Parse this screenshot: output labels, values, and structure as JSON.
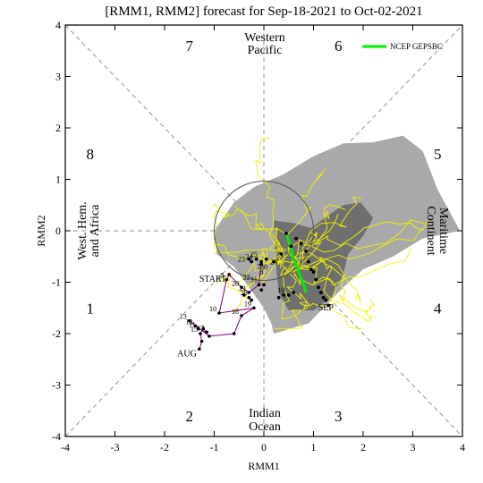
{
  "chart_data": {
    "type": "scatter",
    "title": "[RMM1, RMM2] forecast for Sep-18-2021 to Oct-02-2021",
    "xlabel": "RMM1",
    "ylabel": "RMM2",
    "xlim": [
      -4,
      4
    ],
    "ylim": [
      -4,
      4
    ],
    "xticks": [
      "-4",
      "-3",
      "-2",
      "-1",
      "0",
      "1",
      "2",
      "3",
      "4"
    ],
    "yticks": [
      "-4",
      "-3",
      "-2",
      "-1",
      "0",
      "1",
      "2",
      "3",
      "4"
    ],
    "grid": false,
    "legend": {
      "position": "top-right",
      "entries": [
        {
          "name": "NCEP GEPSBC",
          "color": "#00ee00"
        }
      ]
    },
    "phase_labels": [
      {
        "text": "1",
        "x": -3.5,
        "y": -1.5
      },
      {
        "text": "2",
        "x": -1.5,
        "y": -3.6
      },
      {
        "text": "3",
        "x": 1.5,
        "y": -3.6
      },
      {
        "text": "4",
        "x": 3.5,
        "y": -1.5
      },
      {
        "text": "5",
        "x": 3.5,
        "y": 1.5
      },
      {
        "text": "6",
        "x": 1.5,
        "y": 3.6
      },
      {
        "text": "7",
        "x": -1.5,
        "y": 3.6
      },
      {
        "text": "8",
        "x": -3.5,
        "y": 1.5
      }
    ],
    "region_labels": {
      "top": [
        "Western",
        "Pacific"
      ],
      "bottom": [
        "Indian",
        "Ocean"
      ],
      "left": [
        "West. Hem.",
        "and Africa"
      ],
      "right": [
        "Maritime",
        "Continent"
      ]
    },
    "unit_circle_radius": 1,
    "outer_spread_polygon": [
      [
        -1.0,
        0.0
      ],
      [
        -0.6,
        0.55
      ],
      [
        -0.2,
        0.85
      ],
      [
        0.4,
        1.1
      ],
      [
        1.0,
        1.45
      ],
      [
        1.6,
        1.7
      ],
      [
        2.2,
        1.72
      ],
      [
        2.8,
        1.85
      ],
      [
        3.2,
        1.55
      ],
      [
        3.5,
        0.8
      ],
      [
        3.95,
        0.0
      ],
      [
        3.2,
        -0.15
      ],
      [
        2.6,
        -0.5
      ],
      [
        2.0,
        -0.75
      ],
      [
        1.6,
        -1.1
      ],
      [
        1.2,
        -1.5
      ],
      [
        0.9,
        -1.8
      ],
      [
        0.2,
        -2.0
      ],
      [
        0.15,
        -1.8
      ],
      [
        0.0,
        -1.5
      ],
      [
        -0.3,
        -1.1
      ],
      [
        -0.6,
        -0.7
      ],
      [
        -0.95,
        -0.45
      ]
    ],
    "inner_spread_polygon": [
      [
        0.2,
        0.2
      ],
      [
        0.6,
        0.15
      ],
      [
        0.95,
        0.05
      ],
      [
        1.3,
        0.3
      ],
      [
        1.6,
        0.5
      ],
      [
        1.95,
        0.55
      ],
      [
        2.2,
        0.25
      ],
      [
        2.0,
        -0.1
      ],
      [
        1.7,
        -0.45
      ],
      [
        1.6,
        -0.85
      ],
      [
        1.35,
        -1.3
      ],
      [
        1.0,
        -1.55
      ],
      [
        0.5,
        -1.55
      ],
      [
        0.3,
        -1.2
      ],
      [
        0.25,
        -0.7
      ]
    ],
    "observed": {
      "name": "Observed",
      "color": "#800080",
      "points": [
        {
          "label": "AUG",
          "x": -1.3,
          "y": -2.3
        },
        {
          "label": "",
          "x": -1.25,
          "y": -2.15
        },
        {
          "label": "15",
          "x": -1.28,
          "y": -2.0
        },
        {
          "label": "",
          "x": -1.22,
          "y": -1.9
        },
        {
          "label": "17",
          "x": -1.15,
          "y": -1.97
        },
        {
          "label": "11",
          "x": -1.32,
          "y": -1.9
        },
        {
          "label": "12",
          "x": -1.38,
          "y": -1.85
        },
        {
          "label": "13",
          "x": -1.5,
          "y": -1.75
        },
        {
          "label": "",
          "x": -1.1,
          "y": -2.05
        },
        {
          "label": "",
          "x": -0.6,
          "y": -2.0
        },
        {
          "label": "18",
          "x": -0.45,
          "y": -1.65
        },
        {
          "label": "19",
          "x": -0.2,
          "y": -1.5
        },
        {
          "label": "10",
          "x": -0.9,
          "y": -1.6
        },
        {
          "label": "9",
          "x": -0.75,
          "y": -0.95
        },
        {
          "label": "START",
          "x": -0.7,
          "y": -0.85
        },
        {
          "label": "20",
          "x": -0.45,
          "y": -1.1
        },
        {
          "label": "21",
          "x": -0.3,
          "y": -1.2
        },
        {
          "label": "",
          "x": -0.1,
          "y": -1.05
        },
        {
          "label": "",
          "x": -0.05,
          "y": -0.6
        }
      ]
    },
    "ensemble_mean": {
      "name": "NCEP GEPSBC",
      "color": "#00ee00",
      "points": [
        [
          0.45,
          -0.05
        ],
        [
          0.55,
          -0.35
        ],
        [
          0.6,
          -0.55
        ],
        [
          0.7,
          -0.8
        ],
        [
          0.8,
          -1.05
        ],
        [
          0.85,
          -1.2
        ]
      ]
    },
    "black_points": [
      [
        -0.3,
        -0.55
      ],
      [
        -0.25,
        -0.6
      ],
      [
        -0.15,
        -0.55
      ],
      [
        -0.05,
        -0.65
      ],
      [
        0.05,
        -0.55
      ],
      [
        0.2,
        -0.6
      ],
      [
        0.35,
        -0.45
      ],
      [
        0.45,
        -0.05
      ],
      [
        0.55,
        -0.3
      ],
      [
        0.65,
        -0.15
      ],
      [
        0.75,
        -0.25
      ],
      [
        0.85,
        -0.4
      ],
      [
        0.9,
        -0.6
      ],
      [
        0.95,
        -0.75
      ],
      [
        1.0,
        -0.8
      ],
      [
        1.05,
        -0.95
      ],
      [
        1.1,
        -1.1
      ],
      [
        1.15,
        -1.2
      ],
      [
        1.2,
        -1.3
      ],
      [
        1.25,
        -1.35
      ],
      [
        1.3,
        -1.45
      ],
      [
        0.6,
        -1.2
      ],
      [
        0.5,
        -1.25
      ],
      [
        0.4,
        -1.25
      ],
      [
        0.3,
        -1.3
      ],
      [
        -0.3,
        -1.3
      ],
      [
        -0.4,
        -1.25
      ],
      [
        -0.25,
        -1.35
      ],
      [
        -0.05,
        -1.15
      ],
      [
        0.0,
        -1.05
      ]
    ],
    "point_labels": [
      {
        "text": "23",
        "x": -0.45,
        "y": -0.6
      },
      {
        "text": "24",
        "x": -0.3,
        "y": -0.55
      },
      {
        "text": "25",
        "x": -0.2,
        "y": -0.5
      },
      {
        "text": "7",
        "x": -0.1,
        "y": -0.75
      },
      {
        "text": "8",
        "x": -0.05,
        "y": -0.85
      },
      {
        "text": "26",
        "x": 0.2,
        "y": -0.65
      },
      {
        "text": "22",
        "x": -0.35,
        "y": -0.95
      },
      {
        "text": "31",
        "x": -0.2,
        "y": -1.0
      },
      {
        "text": "28",
        "x": -0.4,
        "y": -1.25
      },
      {
        "text": "30",
        "x": 0.0,
        "y": -0.75
      },
      {
        "text": "10",
        "x": 0.35,
        "y": -1.2
      },
      {
        "text": "SEP",
        "x": 1.25,
        "y": -1.55
      }
    ]
  }
}
